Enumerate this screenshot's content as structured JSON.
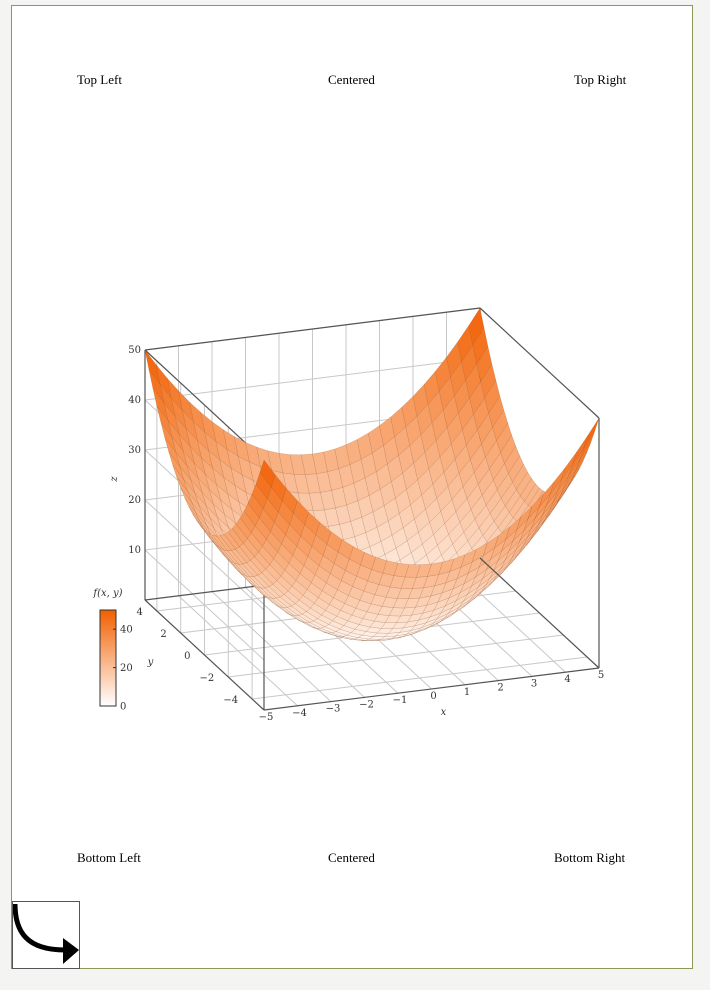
{
  "header": {
    "top_left": "Top Left",
    "top_center": "Centered",
    "top_right": "Top Right"
  },
  "footer": {
    "bottom_left": "Bottom Left",
    "bottom_center": "Centered",
    "bottom_right": "Bottom Right"
  },
  "corner_icon": "curved-arrow-icon",
  "colors": {
    "surface_high": "#f25f00",
    "surface_low": "#ffffff",
    "grid": "#c8c8c8",
    "axis": "#555555",
    "page_border": "#8a9a55"
  },
  "chart_data": {
    "type": "surface",
    "function": "f(x,y) = x^2 + y^2",
    "x": {
      "label": "x",
      "range": [
        -5,
        5
      ],
      "ticks": [
        -5,
        -4,
        -3,
        -2,
        -1,
        0,
        1,
        2,
        3,
        4,
        5
      ]
    },
    "y": {
      "label": "y",
      "range": [
        -5,
        5
      ],
      "ticks": [
        -4,
        -2,
        0,
        2,
        4
      ]
    },
    "z": {
      "label": "z",
      "range": [
        0,
        50
      ],
      "ticks": [
        10,
        20,
        30,
        40,
        50
      ]
    },
    "colorbar": {
      "label": "f(x, y)",
      "range": [
        0,
        50
      ],
      "ticks": [
        0,
        20,
        40
      ]
    },
    "grid": true,
    "mesh_samples": 30
  }
}
